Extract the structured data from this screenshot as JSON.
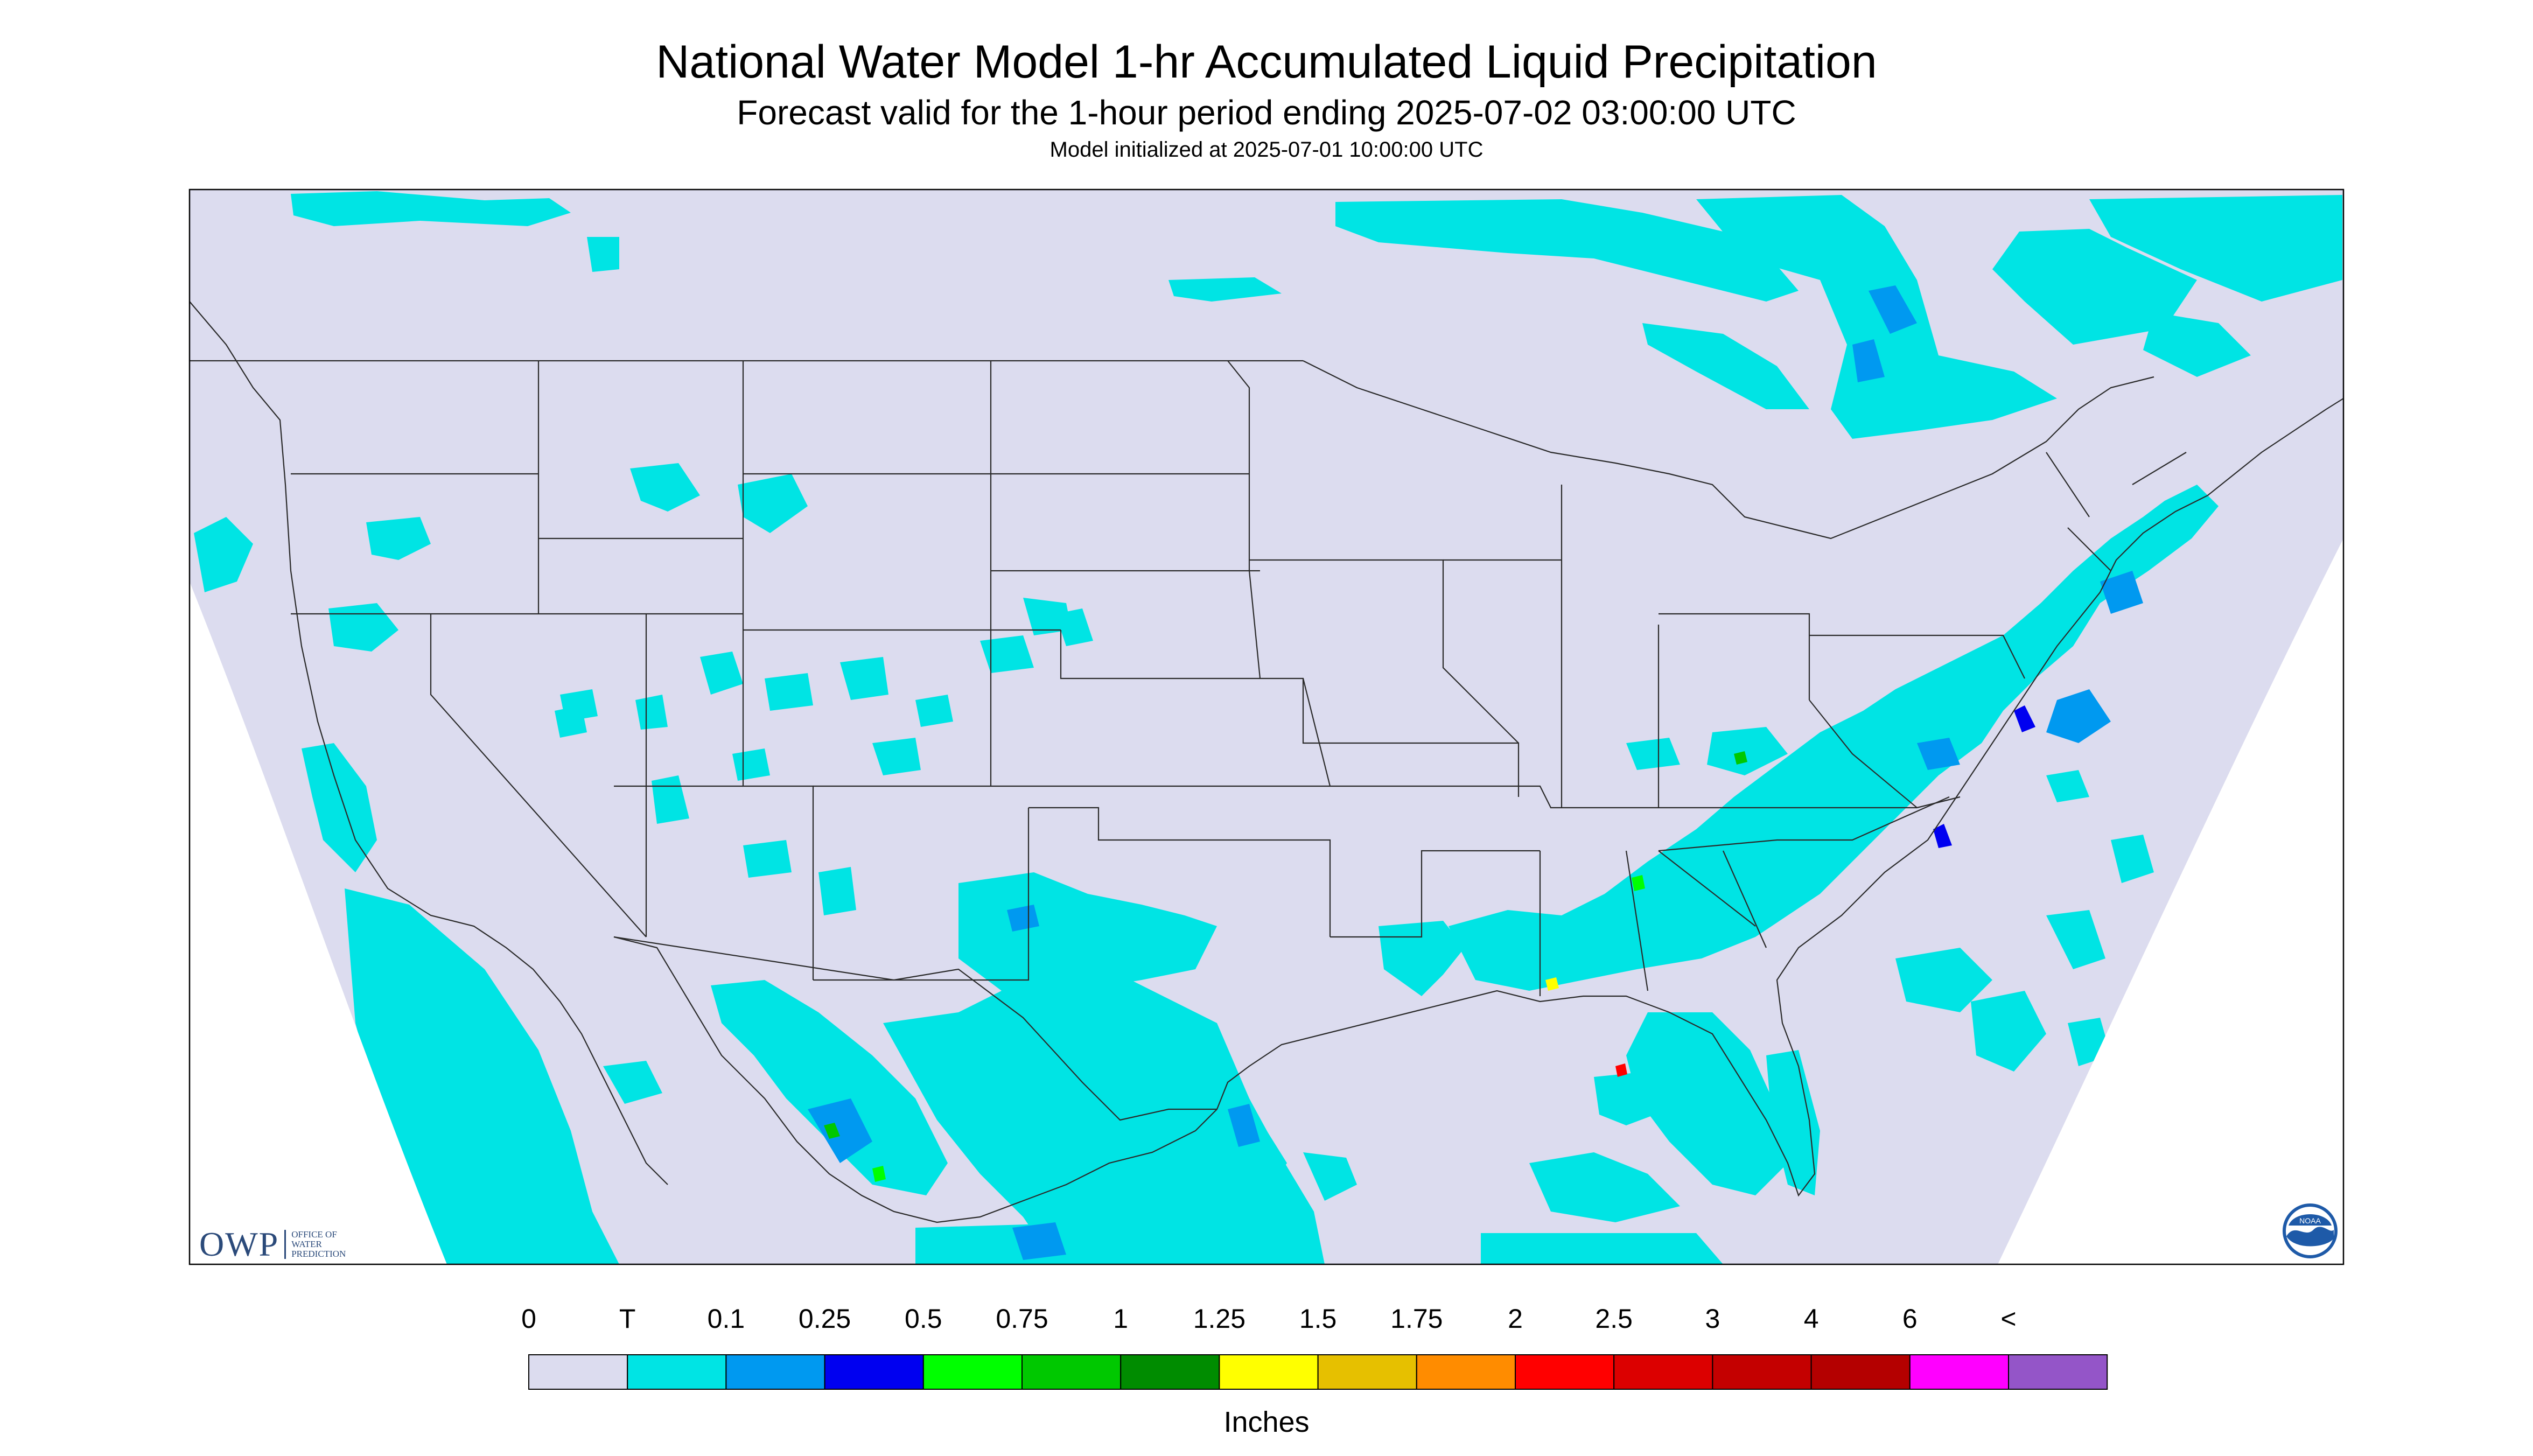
{
  "header": {
    "title": "National Water Model 1-hr Accumulated Liquid Precipitation",
    "subtitle": "Forecast valid for the 1-hour period ending 2025-07-02 03:00:00 UTC",
    "init": "Model initialized at 2025-07-01 10:00:00 UTC"
  },
  "map": {
    "background": "#dcdcef",
    "border": "#000000",
    "boundary_color": "#2a2a2a",
    "outside_color": "#ffffff"
  },
  "legend": {
    "units": "Inches",
    "labels": [
      "0",
      "T",
      "0.1",
      "0.25",
      "0.5",
      "0.75",
      "1",
      "1.25",
      "1.5",
      "1.75",
      "2",
      "2.5",
      "3",
      "4",
      "6",
      "<"
    ],
    "colors": [
      "#dcdcef",
      "#00e4e4",
      "#0099f0",
      "#0000f0",
      "#00ff00",
      "#00c800",
      "#008c00",
      "#ffff00",
      "#e6c000",
      "#ff8c00",
      "#ff0000",
      "#dc0000",
      "#c40000",
      "#b40000",
      "#ff00ff",
      "#9455c8"
    ]
  },
  "logos": {
    "owp_main": "OWP",
    "owp_sub": "Office of\nWater\nPrediction",
    "noaa": "NOAA"
  }
}
